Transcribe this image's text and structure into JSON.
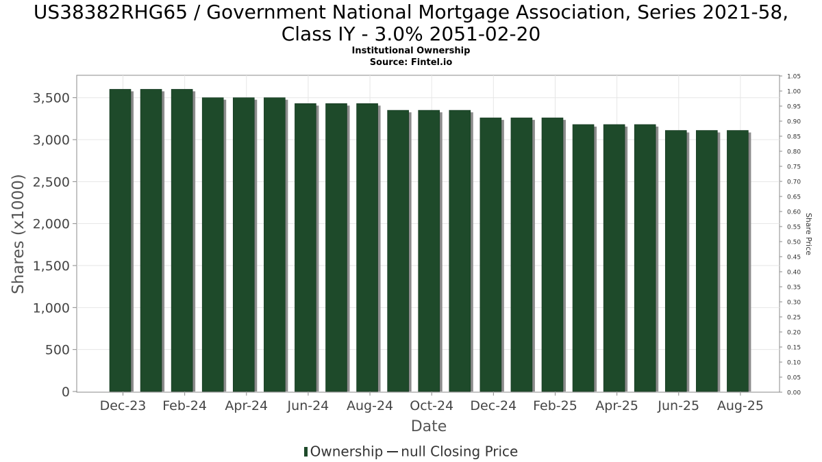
{
  "title_line1": "US38382RHG65 / Government National Mortgage Association, Series 2021-58,",
  "title_line2": "Class IY - 3.0% 2051-02-20",
  "subtitle_line1": "Institutional Ownership",
  "subtitle_line2": "Source: Fintel.io",
  "legend": {
    "ownership": "Ownership",
    "price": "null Closing Price"
  },
  "colors": {
    "bar": "#1e4a2a",
    "bar_shadow": "#8c8c8c",
    "grid": "#e6e6e6"
  },
  "chart_data": {
    "type": "bar",
    "xlabel": "Date",
    "ylabel": "Shares (x1000)",
    "y2label": "Share Price",
    "ylim": [
      0,
      3750
    ],
    "y_ticks": [
      0,
      500,
      1000,
      1500,
      2000,
      2500,
      3000,
      3500
    ],
    "y_tick_labels": [
      "0",
      "500",
      "1,000",
      "1,500",
      "2,000",
      "2,500",
      "3,000",
      "3,500"
    ],
    "y2lim": [
      0,
      1.05
    ],
    "y2_tick_labels": [
      "0.00",
      "0.05",
      "0.10",
      "0.15",
      "0.20",
      "0.25",
      "0.30",
      "0.35",
      "0.40",
      "0.45",
      "0.50",
      "0.55",
      "0.60",
      "0.65",
      "0.70",
      "0.75",
      "0.80",
      "0.85",
      "0.90",
      "0.95",
      "1.00",
      "1.05"
    ],
    "x_tick_labels": [
      "Dec-23",
      "Feb-24",
      "Apr-24",
      "Jun-24",
      "Aug-24",
      "Oct-24",
      "Dec-24",
      "Feb-25",
      "Apr-25",
      "Jun-25",
      "Aug-25"
    ],
    "grid": true,
    "legend_position": "bottom",
    "series": [
      {
        "name": "Ownership",
        "values": [
          3600,
          3600,
          3600,
          3500,
          3500,
          3500,
          3430,
          3430,
          3430,
          3350,
          3350,
          3350,
          3260,
          3260,
          3260,
          3180,
          3180,
          3180,
          3110,
          3110,
          3110
        ]
      }
    ]
  }
}
